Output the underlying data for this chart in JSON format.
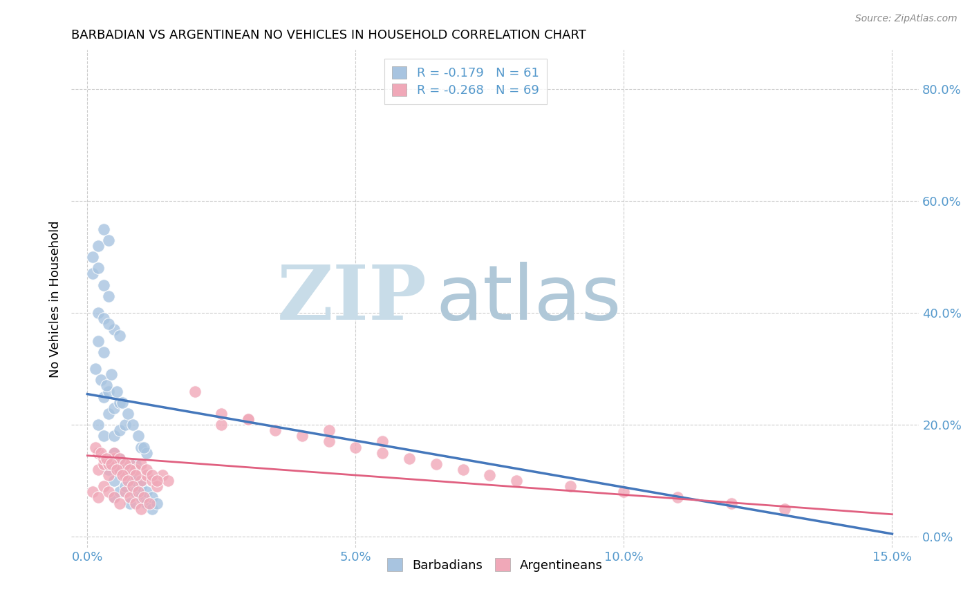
{
  "title": "BARBADIAN VS ARGENTINEAN NO VEHICLES IN HOUSEHOLD CORRELATION CHART",
  "source": "Source: ZipAtlas.com",
  "xlabel_vals": [
    0.0,
    5.0,
    10.0,
    15.0
  ],
  "ylabel_vals": [
    0.0,
    20.0,
    40.0,
    60.0,
    80.0
  ],
  "xlim": [
    -0.3,
    15.5
  ],
  "ylim": [
    -2.0,
    87.0
  ],
  "legend_label1": "Barbadians",
  "legend_label2": "Argentineans",
  "r1": -0.179,
  "n1": 61,
  "r2": -0.268,
  "n2": 69,
  "color_barbadian": "#a8c4e0",
  "color_argentinean": "#f0a8b8",
  "color_line1": "#4477bb",
  "color_line2": "#e06080",
  "watermark_zip": "ZIP",
  "watermark_atlas": "atlas",
  "watermark_color_zip": "#c8dce8",
  "watermark_color_atlas": "#b0c8d8",
  "background_color": "#ffffff",
  "grid_color": "#cccccc",
  "tick_color": "#5599cc",
  "barbadian_x": [
    0.5,
    0.6,
    0.8,
    0.5,
    0.6,
    0.9,
    1.0,
    1.1,
    0.4,
    0.3,
    0.2,
    0.4,
    0.5,
    0.6,
    0.3,
    0.4,
    0.5,
    0.6,
    0.7,
    0.2,
    0.3,
    0.5,
    0.6,
    0.2,
    0.3,
    0.4,
    0.1,
    0.2,
    0.3,
    0.4,
    0.5,
    0.6,
    0.7,
    0.8,
    0.9,
    1.0,
    1.1,
    1.2,
    0.15,
    0.25,
    0.35,
    0.45,
    0.55,
    0.65,
    0.75,
    0.85,
    0.95,
    1.05,
    0.1,
    0.2,
    0.3,
    0.4,
    0.5,
    0.6,
    0.7,
    0.8,
    0.9,
    1.0,
    1.1,
    1.2,
    1.3
  ],
  "barbadian_y": [
    10.0,
    12.0,
    11.0,
    15.0,
    14.0,
    13.0,
    16.0,
    15.0,
    12.0,
    18.0,
    20.0,
    22.0,
    18.0,
    19.0,
    25.0,
    26.0,
    23.0,
    24.0,
    20.0,
    35.0,
    33.0,
    37.0,
    36.0,
    40.0,
    39.0,
    38.0,
    47.0,
    48.0,
    45.0,
    43.0,
    7.0,
    8.0,
    9.0,
    6.0,
    8.0,
    7.0,
    6.0,
    5.0,
    30.0,
    28.0,
    27.0,
    29.0,
    26.0,
    24.0,
    22.0,
    20.0,
    18.0,
    16.0,
    50.0,
    52.0,
    55.0,
    53.0,
    14.0,
    13.0,
    12.0,
    11.0,
    10.0,
    9.0,
    8.0,
    7.0,
    6.0
  ],
  "argentinean_x": [
    0.2,
    0.3,
    0.4,
    0.5,
    0.6,
    0.7,
    0.8,
    0.9,
    1.0,
    1.1,
    1.2,
    1.3,
    1.4,
    1.5,
    0.2,
    0.3,
    0.4,
    0.5,
    0.6,
    0.7,
    0.8,
    0.9,
    1.0,
    1.1,
    1.2,
    1.3,
    0.1,
    0.2,
    0.3,
    0.4,
    0.5,
    0.6,
    0.7,
    0.8,
    0.9,
    1.0,
    0.15,
    0.25,
    0.35,
    0.45,
    0.55,
    0.65,
    0.75,
    0.85,
    0.95,
    1.05,
    1.15,
    2.5,
    3.0,
    3.5,
    4.0,
    4.5,
    5.0,
    5.5,
    6.0,
    6.5,
    7.0,
    7.5,
    8.0,
    9.0,
    10.0,
    11.0,
    12.0,
    13.0,
    2.0,
    2.5,
    3.0,
    4.5,
    5.5
  ],
  "argentinean_y": [
    12.0,
    13.0,
    11.0,
    14.0,
    12.0,
    11.0,
    13.0,
    12.0,
    10.0,
    11.0,
    10.0,
    9.0,
    11.0,
    10.0,
    15.0,
    14.0,
    13.0,
    15.0,
    14.0,
    13.0,
    12.0,
    11.0,
    13.0,
    12.0,
    11.0,
    10.0,
    8.0,
    7.0,
    9.0,
    8.0,
    7.0,
    6.0,
    8.0,
    7.0,
    6.0,
    5.0,
    16.0,
    15.0,
    14.0,
    13.0,
    12.0,
    11.0,
    10.0,
    9.0,
    8.0,
    7.0,
    6.0,
    20.0,
    21.0,
    19.0,
    18.0,
    17.0,
    16.0,
    15.0,
    14.0,
    13.0,
    12.0,
    11.0,
    10.0,
    9.0,
    8.0,
    7.0,
    6.0,
    5.0,
    26.0,
    22.0,
    21.0,
    19.0,
    17.0
  ],
  "line1_x0": 0.0,
  "line1_y0": 25.5,
  "line1_x1": 15.0,
  "line1_y1": 0.5,
  "line2_x0": 0.0,
  "line2_y0": 14.5,
  "line2_x1": 15.0,
  "line2_y1": 4.0
}
